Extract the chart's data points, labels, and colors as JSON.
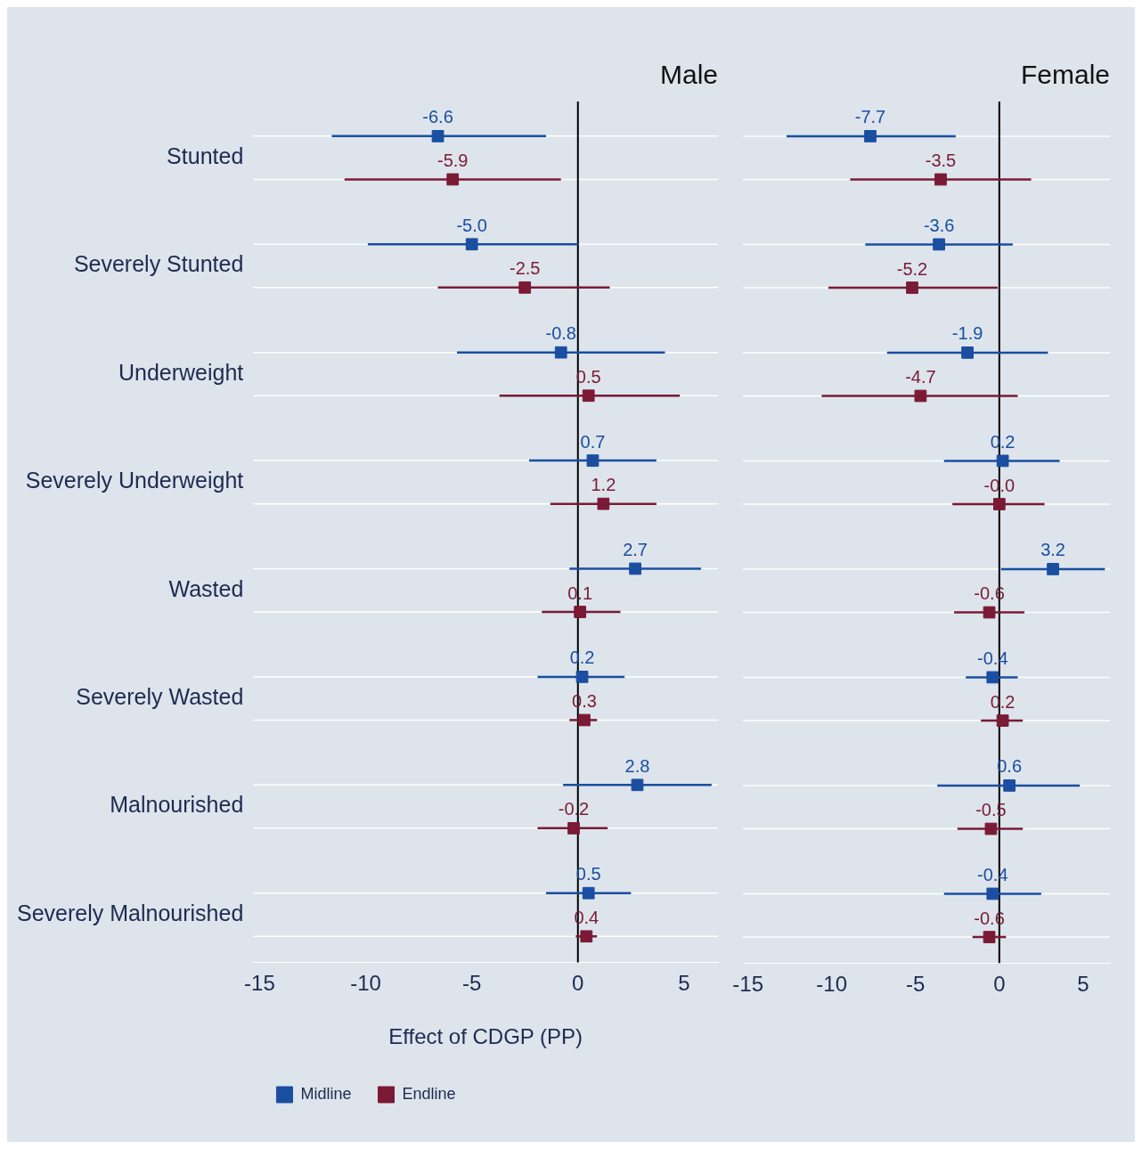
{
  "chart_data": [
    {
      "type": "scatter",
      "orientation": "horizontal",
      "title": "Male",
      "xlabel": "Effect of CDGP (PP)",
      "categories": [
        "Stunted",
        "Severely Stunted",
        "Underweight",
        "Severely Underweight",
        "Wasted",
        "Severely Wasted",
        "Malnourished",
        "Severely Malnourished"
      ],
      "series": [
        {
          "name": "Midline",
          "color": "#1a4ea0",
          "values": [
            -6.6,
            -5.0,
            -0.8,
            0.7,
            2.7,
            0.2,
            2.8,
            0.5
          ],
          "value_labels": [
            "-6.6",
            "-5.0",
            "-0.8",
            "0.7",
            "2.7",
            "0.2",
            "2.8",
            "0.5"
          ],
          "errors": [
            [
              -11.6,
              -1.5
            ],
            [
              -9.9,
              0.0
            ],
            [
              -5.7,
              4.1
            ],
            [
              -2.3,
              3.7
            ],
            [
              -0.4,
              5.8
            ],
            [
              -1.9,
              2.2
            ],
            [
              -0.7,
              6.3
            ],
            [
              -1.5,
              2.5
            ]
          ]
        },
        {
          "name": "Endline",
          "color": "#7a1a35",
          "values": [
            -5.9,
            -2.5,
            0.5,
            1.2,
            0.1,
            0.3,
            -0.2,
            0.4
          ],
          "value_labels": [
            "-5.9",
            "-2.5",
            "0.5",
            "1.2",
            "0.1",
            "0.3",
            "-0.2",
            "0.4"
          ],
          "errors": [
            [
              -11.0,
              -0.8
            ],
            [
              -6.6,
              1.5
            ],
            [
              -3.7,
              4.8
            ],
            [
              -1.3,
              3.7
            ],
            [
              -1.7,
              2.0
            ],
            [
              -0.4,
              0.9
            ],
            [
              -1.9,
              1.4
            ],
            [
              -0.1,
              0.9
            ]
          ]
        }
      ],
      "xlim": [
        -15.3,
        6.6
      ],
      "xticks": [
        -15,
        -10,
        -5,
        0,
        5
      ],
      "ref_lines": [
        {
          "axis": "x",
          "value": 0,
          "color": "#000000"
        }
      ],
      "grid": "y",
      "legend": "bottom",
      "marker": "square"
    },
    {
      "type": "scatter",
      "orientation": "horizontal",
      "title": "Female",
      "categories": [
        null,
        null,
        null,
        null,
        null,
        null,
        null,
        null
      ],
      "series": [
        {
          "color": "#1a4ea0",
          "values": [
            -7.7,
            -3.6,
            -1.9,
            0.2,
            3.2,
            -0.4,
            0.6,
            -0.4
          ],
          "value_labels": [
            "-7.7",
            "-3.6",
            "-1.9",
            "0.2",
            "3.2",
            "-0.4",
            "0.6",
            "-0.4"
          ],
          "errors": [
            [
              -12.7,
              -2.6
            ],
            [
              -8.0,
              0.8
            ],
            [
              -6.7,
              2.9
            ],
            [
              -3.3,
              3.6
            ],
            [
              0.1,
              6.3
            ],
            [
              -2.0,
              1.1
            ],
            [
              -3.7,
              4.8
            ],
            [
              -3.3,
              2.5
            ]
          ]
        },
        {
          "color": "#7a1a35",
          "values": [
            -3.5,
            -5.2,
            -4.7,
            0.0,
            -0.6,
            0.2,
            -0.5,
            -0.6
          ],
          "value_labels": [
            "-3.5",
            "-5.2",
            "-4.7",
            "-0.0",
            "-0.6",
            "0.2",
            "-0.5",
            "-0.6"
          ],
          "errors": [
            [
              -8.9,
              1.9
            ],
            [
              -10.2,
              -0.1
            ],
            [
              -10.6,
              1.1
            ],
            [
              -2.8,
              2.7
            ],
            [
              -2.7,
              1.5
            ],
            [
              -1.1,
              1.4
            ],
            [
              -2.5,
              1.4
            ],
            [
              -1.6,
              0.4
            ]
          ]
        }
      ],
      "xlim": [
        -15.3,
        6.6
      ],
      "xticks": [
        -15,
        -10,
        -5,
        0,
        5
      ],
      "ref_lines": [
        {
          "axis": "x",
          "value": 0,
          "color": "#000000"
        }
      ],
      "grid": "y",
      "marker": "square",
      "tick_labels": "x"
    }
  ]
}
